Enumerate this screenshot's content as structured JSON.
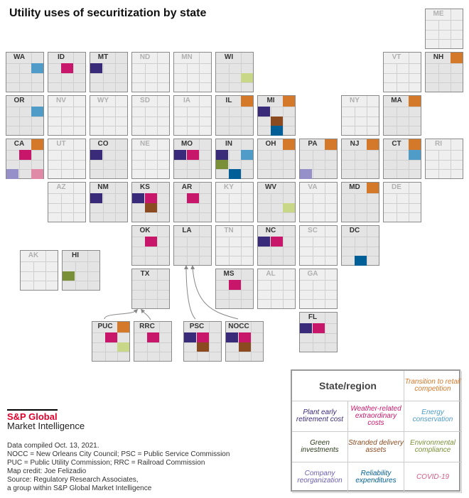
{
  "title": "Utility uses of securitization by state",
  "categories": [
    {
      "key": "transition",
      "label": "Transition to retail competition",
      "color": "#d4782a"
    },
    {
      "key": "plant",
      "label": "Plant early retirement cost",
      "color": "#3a2a7a"
    },
    {
      "key": "weather",
      "label": "Weather-related extraordinary costs",
      "color": "#c8176a"
    },
    {
      "key": "energy",
      "label": "Energy conservation",
      "color": "#4f9cc8"
    },
    {
      "key": "green",
      "label": "Green investments",
      "color": "#7a9038",
      "text_color": "#2a3a1a"
    },
    {
      "key": "stranded",
      "label": "Stranded delivery assets",
      "color": "#8b4a1f"
    },
    {
      "key": "env",
      "label": "Environmental compliance",
      "color": "#c8d888",
      "text_color": "#7a9038"
    },
    {
      "key": "company",
      "label": "Company reorganization",
      "color": "#9590c8",
      "text_color": "#6a5fb0"
    },
    {
      "key": "reliability",
      "label": "Reliability expenditures",
      "color": "#005f96"
    },
    {
      "key": "covid",
      "label": "COVID-19",
      "color": "#e08aa8",
      "text_color": "#d45a80"
    }
  ],
  "legend_header": "State/region",
  "states": [
    {
      "abbr": "ME",
      "uses": []
    },
    {
      "abbr": "WA",
      "uses": [
        "energy"
      ]
    },
    {
      "abbr": "ID",
      "uses": [
        "weather"
      ]
    },
    {
      "abbr": "MT",
      "uses": [
        "plant"
      ]
    },
    {
      "abbr": "ND",
      "uses": []
    },
    {
      "abbr": "MN",
      "uses": []
    },
    {
      "abbr": "WI",
      "uses": [
        "env"
      ]
    },
    {
      "abbr": "VT",
      "uses": []
    },
    {
      "abbr": "NH",
      "uses": [
        "transition"
      ]
    },
    {
      "abbr": "OR",
      "uses": [
        "energy"
      ]
    },
    {
      "abbr": "NV",
      "uses": []
    },
    {
      "abbr": "WY",
      "uses": []
    },
    {
      "abbr": "SD",
      "uses": []
    },
    {
      "abbr": "IA",
      "uses": []
    },
    {
      "abbr": "IL",
      "uses": [
        "transition"
      ]
    },
    {
      "abbr": "MI",
      "uses": [
        "transition",
        "plant",
        "stranded",
        "reliability"
      ]
    },
    {
      "abbr": "NY",
      "uses": []
    },
    {
      "abbr": "MA",
      "uses": [
        "transition"
      ]
    },
    {
      "abbr": "CA",
      "uses": [
        "transition",
        "weather",
        "company",
        "covid"
      ]
    },
    {
      "abbr": "UT",
      "uses": []
    },
    {
      "abbr": "CO",
      "uses": [
        "plant"
      ]
    },
    {
      "abbr": "NE",
      "uses": []
    },
    {
      "abbr": "MO",
      "uses": [
        "plant",
        "weather"
      ]
    },
    {
      "abbr": "IN",
      "uses": [
        "plant",
        "energy",
        "green",
        "reliability"
      ]
    },
    {
      "abbr": "OH",
      "uses": [
        "transition"
      ]
    },
    {
      "abbr": "PA",
      "uses": [
        "transition",
        "company"
      ]
    },
    {
      "abbr": "NJ",
      "uses": [
        "transition"
      ]
    },
    {
      "abbr": "CT",
      "uses": [
        "transition",
        "energy"
      ]
    },
    {
      "abbr": "RI",
      "uses": []
    },
    {
      "abbr": "AZ",
      "uses": []
    },
    {
      "abbr": "NM",
      "uses": [
        "plant"
      ]
    },
    {
      "abbr": "KS",
      "uses": [
        "plant",
        "weather",
        "stranded"
      ]
    },
    {
      "abbr": "AR",
      "uses": [
        "weather"
      ]
    },
    {
      "abbr": "KY",
      "uses": []
    },
    {
      "abbr": "WV",
      "uses": [
        "env"
      ]
    },
    {
      "abbr": "VA",
      "uses": []
    },
    {
      "abbr": "MD",
      "uses": [
        "transition"
      ]
    },
    {
      "abbr": "DE",
      "uses": []
    },
    {
      "abbr": "OK",
      "uses": [
        "weather"
      ]
    },
    {
      "abbr": "LA",
      "uses": [],
      "highlighted": true
    },
    {
      "abbr": "TN",
      "uses": []
    },
    {
      "abbr": "NC",
      "uses": [
        "plant",
        "weather"
      ]
    },
    {
      "abbr": "SC",
      "uses": []
    },
    {
      "abbr": "DC",
      "uses": [
        "reliability"
      ]
    },
    {
      "abbr": "TX",
      "uses": [],
      "highlighted": true
    },
    {
      "abbr": "MS",
      "uses": [
        "weather"
      ]
    },
    {
      "abbr": "AL",
      "uses": []
    },
    {
      "abbr": "GA",
      "uses": []
    },
    {
      "abbr": "FL",
      "uses": [
        "plant",
        "weather"
      ]
    },
    {
      "abbr": "AK",
      "uses": []
    },
    {
      "abbr": "HI",
      "uses": [
        "green"
      ]
    },
    {
      "abbr": "PUC",
      "uses": [
        "transition",
        "weather",
        "env"
      ]
    },
    {
      "abbr": "RRC",
      "uses": [
        "weather"
      ]
    },
    {
      "abbr": "PSC",
      "uses": [
        "plant",
        "weather",
        "stranded"
      ]
    },
    {
      "abbr": "NOCC",
      "uses": [
        "plant",
        "weather",
        "stranded"
      ]
    }
  ],
  "logo": {
    "line1": "S&P Global",
    "line2": "Market Intelligence"
  },
  "notes": [
    "Data compiled Oct. 13, 2021.",
    "NOCC = New Orleans City Council; PSC = Public Service Commission",
    "PUC = Public Utility Commission; RRC = Railroad Commission",
    "Map credit: Joe Felizadio",
    "Source: Regulatory Research Associates,",
    "a group within S&P Global Market Intelligence"
  ]
}
